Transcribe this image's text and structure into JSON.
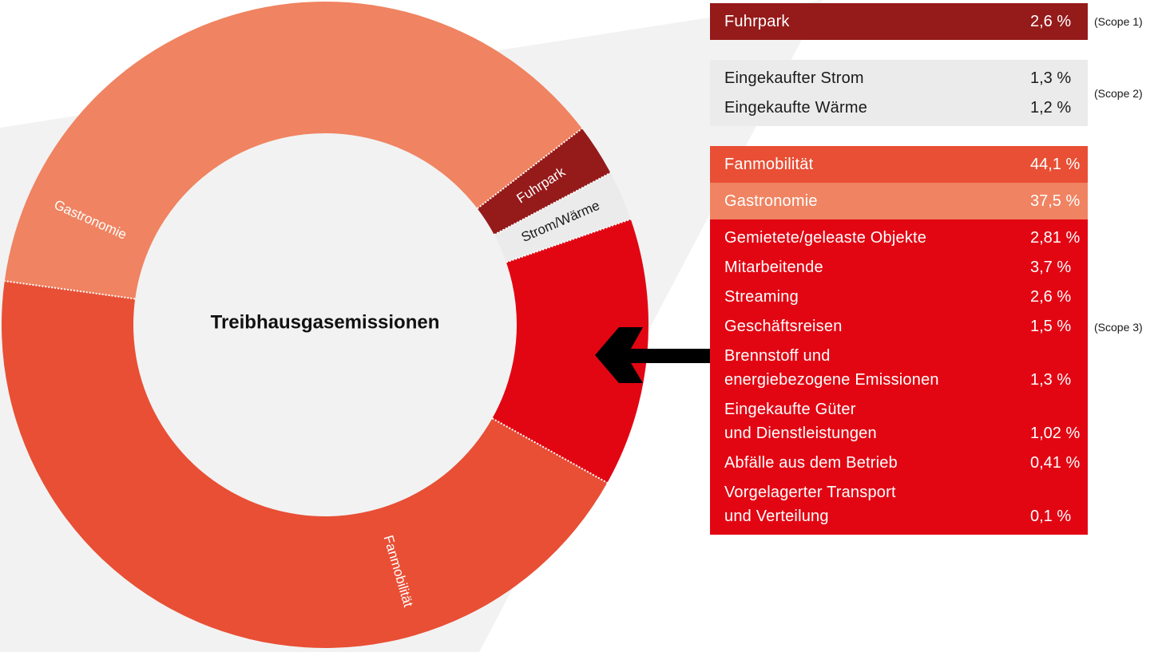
{
  "chart_data": {
    "type": "donut",
    "title": "Treibhausgasemissionen",
    "groups": [
      {
        "scope": "(Scope 1)",
        "segments": [
          {
            "label": "Fuhrpark",
            "color": "#951a1a",
            "text_color": "#ffffff",
            "items": [
              {
                "name": "Fuhrpark",
                "value": 2.6,
                "value_label": "2,6 %"
              }
            ]
          }
        ]
      },
      {
        "scope": "(Scope 2)",
        "segments": [
          {
            "label": "Strom/Wärme",
            "color": "#ebebeb",
            "text_color": "#1a1a1a",
            "items": [
              {
                "name": "Eingekaufter Strom",
                "value": 1.3,
                "value_label": "1,3 %"
              },
              {
                "name": "Eingekaufte Wärme",
                "value": 1.2,
                "value_label": "1,2 %"
              }
            ]
          }
        ]
      },
      {
        "scope": "(Scope 3)",
        "segments": [
          {
            "label": "Fanmobilität",
            "color": "#e84f35",
            "text_color": "#ffffff",
            "items": [
              {
                "name": "Fanmobilität",
                "value": 44.1,
                "value_label": "44,1 %"
              }
            ]
          },
          {
            "label": "Gastronomie",
            "color": "#f08361",
            "text_color": "#ffffff",
            "items": [
              {
                "name": "Gastronomie",
                "value": 37.5,
                "value_label": "37,5 %"
              }
            ]
          },
          {
            "color": "#e20613",
            "text_color": "#ffffff",
            "items": [
              {
                "name": "Gemietete/geleaste Objekte",
                "value": 2.81,
                "value_label": "2,81 %"
              },
              {
                "name": "Mitarbeitende",
                "value": 3.7,
                "value_label": "3,7 %"
              },
              {
                "name": "Streaming",
                "value": 2.6,
                "value_label": "2,6 %"
              },
              {
                "name": "Geschäftsreisen",
                "value": 1.5,
                "value_label": "1,5 %"
              },
              {
                "name": "Brennstoff und\nenergiebezogene Emissionen",
                "value": 1.3,
                "value_label": "1,3 %"
              },
              {
                "name": "Eingekaufte Güter\nund Dienstleistungen",
                "value": 1.02,
                "value_label": "1,02 %"
              },
              {
                "name": "Abfälle aus dem Betrieb",
                "value": 0.41,
                "value_label": "0,41 %"
              },
              {
                "name": "Vorgelagerter Transport\nund Verteilung",
                "value": 0.1,
                "value_label": "0,1 %"
              }
            ]
          }
        ]
      }
    ]
  }
}
